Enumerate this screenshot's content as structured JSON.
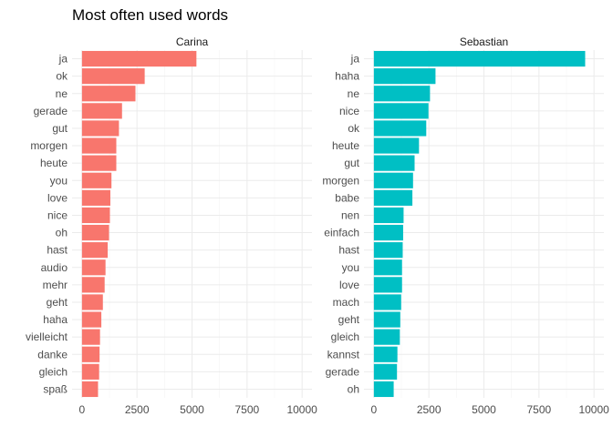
{
  "chart_data": {
    "type": "bar",
    "orientation": "horizontal",
    "title": "Most often used words",
    "xlim": [
      0,
      10000
    ],
    "x_ticks": [
      0,
      2500,
      5000,
      7500,
      10000
    ],
    "grid": true,
    "legend": "none",
    "facets": [
      {
        "name": "Carina",
        "color": "#F8766D",
        "categories": [
          "ja",
          "ok",
          "ne",
          "gerade",
          "gut",
          "morgen",
          "heute",
          "you",
          "love",
          "nice",
          "oh",
          "hast",
          "audio",
          "mehr",
          "geht",
          "haha",
          "vielleicht",
          "danke",
          "gleich",
          "spaß"
        ],
        "values": [
          5200,
          2850,
          2430,
          1820,
          1680,
          1560,
          1560,
          1340,
          1290,
          1270,
          1230,
          1170,
          1070,
          1030,
          950,
          880,
          820,
          800,
          780,
          730
        ]
      },
      {
        "name": "Sebastian",
        "color": "#00BFC4",
        "categories": [
          "ja",
          "haha",
          "ne",
          "nice",
          "ok",
          "heute",
          "gut",
          "morgen",
          "babe",
          "nen",
          "einfach",
          "hast",
          "you",
          "love",
          "mach",
          "geht",
          "gleich",
          "kannst",
          "gerade",
          "oh"
        ],
        "values": [
          9600,
          2800,
          2550,
          2480,
          2380,
          2050,
          1850,
          1780,
          1750,
          1350,
          1330,
          1310,
          1280,
          1280,
          1240,
          1200,
          1180,
          1070,
          1050,
          900
        ]
      }
    ]
  }
}
